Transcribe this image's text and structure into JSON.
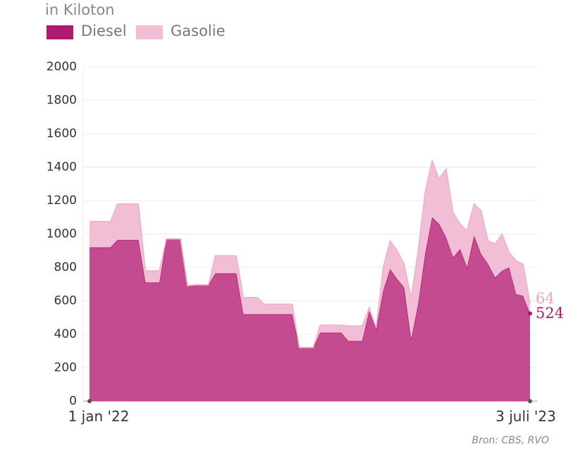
{
  "chart_data": {
    "type": "area",
    "stacked": true,
    "subtitle": "in Kiloton",
    "source": "Bron: CBS, RVO",
    "categories": [
      "1 jan '22",
      null,
      null,
      null,
      null,
      null,
      null,
      null,
      null,
      null,
      null,
      null,
      null,
      null,
      null,
      null,
      null,
      null,
      null,
      null,
      null,
      null,
      null,
      null,
      null,
      null,
      null,
      null,
      null,
      null,
      null,
      null,
      null,
      null,
      null,
      null,
      null,
      null,
      null,
      null,
      null,
      null,
      null,
      null,
      null,
      null,
      null,
      null,
      null,
      null,
      null,
      null,
      null,
      null,
      null,
      null,
      null,
      null,
      null,
      null,
      null,
      null,
      null,
      "3 juli '23"
    ],
    "series": [
      {
        "name": "Diesel",
        "color": "#ad1a6e",
        "values": [
          920,
          920,
          920,
          920,
          965,
          965,
          965,
          965,
          710,
          710,
          710,
          970,
          970,
          970,
          690,
          695,
          695,
          695,
          765,
          765,
          765,
          765,
          520,
          520,
          520,
          520,
          520,
          520,
          520,
          520,
          320,
          320,
          320,
          410,
          410,
          410,
          410,
          360,
          360,
          360,
          540,
          430,
          660,
          790,
          730,
          680,
          370,
          580,
          880,
          1100,
          1060,
          980,
          860,
          910,
          800,
          990,
          880,
          820,
          740,
          780,
          800,
          640,
          630,
          524
        ]
      },
      {
        "name": "Gasolie",
        "color": "#f2bed6",
        "values": [
          155,
          155,
          155,
          155,
          215,
          215,
          215,
          215,
          70,
          70,
          70,
          0,
          0,
          0,
          0,
          0,
          0,
          0,
          105,
          105,
          105,
          105,
          100,
          100,
          100,
          60,
          60,
          60,
          60,
          60,
          0,
          0,
          0,
          45,
          45,
          45,
          45,
          90,
          90,
          90,
          20,
          10,
          140,
          170,
          170,
          140,
          250,
          320,
          370,
          340,
          270,
          410,
          270,
          150,
          220,
          190,
          260,
          140,
          200,
          220,
          90,
          200,
          190,
          64
        ]
      }
    ],
    "ylim": [
      0,
      2000
    ],
    "yticks": [
      0,
      200,
      400,
      600,
      800,
      1000,
      1200,
      1400,
      1600,
      1800,
      2000
    ],
    "grid": true
  }
}
